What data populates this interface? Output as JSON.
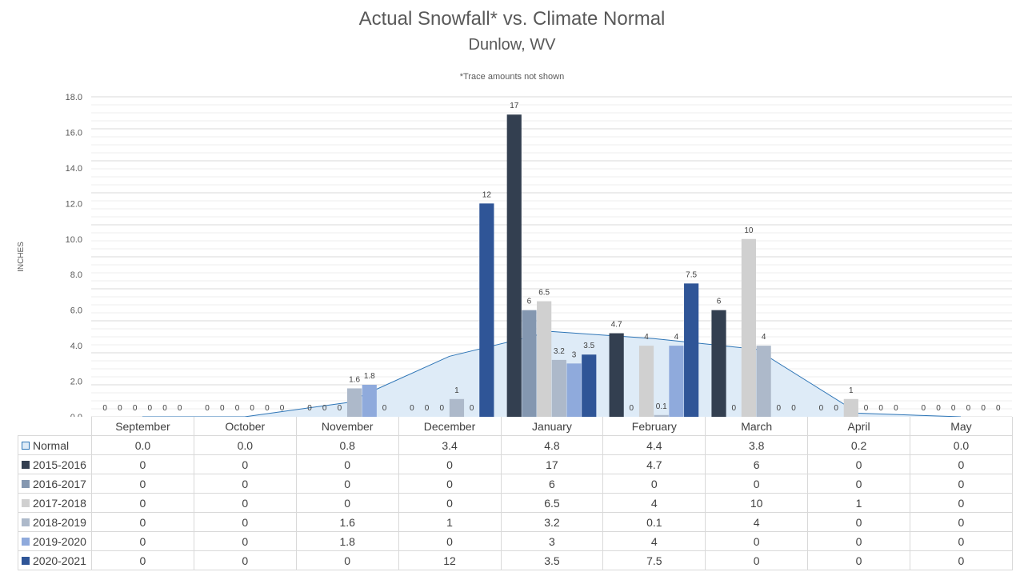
{
  "chart_data": {
    "type": "bar",
    "title": "Actual Snowfall* vs. Climate Normal",
    "subtitle": "Dunlow, WV",
    "note": "*Trace amounts not shown",
    "ylabel": "INCHES",
    "ylim": [
      0,
      18
    ],
    "yticks": [
      "0.0",
      "2.0",
      "4.0",
      "6.0",
      "8.0",
      "10.0",
      "12.0",
      "14.0",
      "16.0",
      "18.0"
    ],
    "categories": [
      "September",
      "October",
      "November",
      "December",
      "January",
      "February",
      "March",
      "April",
      "May"
    ],
    "normal": {
      "name": "Normal",
      "type": "area",
      "color": "#deebf7",
      "line_color": "#2e75b6",
      "values": [
        0.0,
        0.0,
        0.8,
        3.4,
        4.8,
        4.4,
        3.8,
        0.2,
        0.0
      ],
      "display": [
        "0.0",
        "0.0",
        "0.8",
        "3.4",
        "4.8",
        "4.4",
        "3.8",
        "0.2",
        "0.0"
      ]
    },
    "series": [
      {
        "name": "2015-2016",
        "color": "#333f50",
        "values": [
          0,
          0,
          0,
          0,
          17,
          4.7,
          6,
          0,
          0
        ]
      },
      {
        "name": "2016-2017",
        "color": "#8497b0",
        "values": [
          0,
          0,
          0,
          0,
          6,
          0,
          0,
          0,
          0
        ]
      },
      {
        "name": "2017-2018",
        "color": "#d0d0d0",
        "values": [
          0,
          0,
          0,
          0,
          6.5,
          4,
          10,
          1,
          0
        ]
      },
      {
        "name": "2018-2019",
        "color": "#adb9ca",
        "values": [
          0,
          0,
          1.6,
          1,
          3.2,
          0.1,
          4,
          0,
          0
        ]
      },
      {
        "name": "2019-2020",
        "color": "#8faadc",
        "values": [
          0,
          0,
          1.8,
          0,
          3,
          4,
          0,
          0,
          0
        ]
      },
      {
        "name": "2020-2021",
        "color": "#2f5597",
        "values": [
          0,
          0,
          0,
          12,
          3.5,
          7.5,
          0,
          0,
          0
        ]
      }
    ],
    "grid": true,
    "legend_placement": "data-table"
  }
}
